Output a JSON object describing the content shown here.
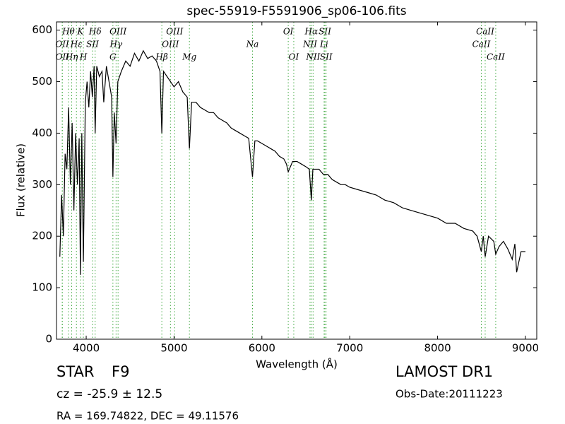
{
  "chart_data": {
    "type": "line",
    "title": "spec-55919-F5591906_sp06-106.fits",
    "xlabel": "Wavelength (Å)",
    "ylabel": "Flux (relative)",
    "xlim": [
      3662,
      9129
    ],
    "ylim": [
      0,
      616
    ],
    "xticks": [
      4000,
      5000,
      6000,
      7000,
      8000,
      9000
    ],
    "yticks": [
      0,
      100,
      200,
      300,
      400,
      500,
      600
    ],
    "x": [
      3700,
      3720,
      3740,
      3760,
      3780,
      3800,
      3820,
      3840,
      3860,
      3880,
      3900,
      3920,
      3934,
      3950,
      3968,
      3990,
      4010,
      4030,
      4050,
      4070,
      4090,
      4102,
      4120,
      4150,
      4180,
      4200,
      4230,
      4260,
      4290,
      4304,
      4320,
      4340,
      4360,
      4400,
      4450,
      4500,
      4550,
      4600,
      4650,
      4700,
      4750,
      4800,
      4840,
      4861,
      4880,
      4920,
      4960,
      5000,
      5050,
      5100,
      5150,
      5175,
      5200,
      5250,
      5300,
      5350,
      5400,
      5450,
      5500,
      5550,
      5600,
      5650,
      5700,
      5750,
      5800,
      5850,
      5893,
      5920,
      5950,
      6000,
      6050,
      6100,
      6150,
      6200,
      6250,
      6280,
      6300,
      6350,
      6400,
      6450,
      6500,
      6540,
      6563,
      6580,
      6650,
      6700,
      6750,
      6800,
      6850,
      6900,
      6950,
      7000,
      7100,
      7200,
      7300,
      7400,
      7500,
      7600,
      7700,
      7800,
      7900,
      8000,
      8100,
      8200,
      8300,
      8400,
      8450,
      8498,
      8520,
      8542,
      8580,
      8640,
      8662,
      8700,
      8750,
      8800,
      8850,
      8880,
      8900,
      8950,
      9000
    ],
    "series": [
      {
        "name": "flux",
        "color": "#000000",
        "values": [
          160,
          280,
          200,
          360,
          330,
          450,
          300,
          420,
          250,
          400,
          300,
          390,
          125,
          400,
          150,
          460,
          500,
          450,
          520,
          470,
          530,
          400,
          530,
          510,
          520,
          460,
          530,
          500,
          470,
          315,
          440,
          380,
          500,
          520,
          540,
          530,
          555,
          540,
          560,
          545,
          550,
          540,
          520,
          400,
          520,
          510,
          500,
          490,
          500,
          480,
          470,
          370,
          460,
          460,
          450,
          445,
          440,
          440,
          430,
          425,
          420,
          410,
          405,
          400,
          395,
          390,
          315,
          385,
          385,
          380,
          375,
          370,
          365,
          355,
          350,
          340,
          325,
          345,
          345,
          340,
          335,
          330,
          270,
          330,
          330,
          320,
          320,
          310,
          305,
          300,
          300,
          295,
          290,
          285,
          280,
          270,
          265,
          255,
          250,
          245,
          240,
          235,
          225,
          225,
          215,
          210,
          200,
          170,
          200,
          160,
          200,
          190,
          165,
          180,
          190,
          175,
          155,
          185,
          130,
          170,
          170
        ]
      }
    ],
    "line_markers": [
      {
        "label": "OII",
        "x": 3727
      },
      {
        "label": "OII",
        "x": 3729
      },
      {
        "label": "Hθ",
        "x": 3798
      },
      {
        "label": "Hη",
        "x": 3835
      },
      {
        "label": "Hε",
        "x": 3889
      },
      {
        "label": "K",
        "x": 3934
      },
      {
        "label": "H",
        "x": 3968
      },
      {
        "label": "SII",
        "x": 4072
      },
      {
        "label": "Hδ",
        "x": 4102
      },
      {
        "label": "G",
        "x": 4304
      },
      {
        "label": "Hγ",
        "x": 4340
      },
      {
        "label": "OIII",
        "x": 4363
      },
      {
        "label": "Hβ",
        "x": 4861
      },
      {
        "label": "OIII",
        "x": 4959
      },
      {
        "label": "OIII",
        "x": 5007
      },
      {
        "label": "Mg",
        "x": 5175
      },
      {
        "label": "Na",
        "x": 5893
      },
      {
        "label": "OI",
        "x": 6300
      },
      {
        "label": "OI",
        "x": 6363
      },
      {
        "label": "NII",
        "x": 6548
      },
      {
        "label": "Hα",
        "x": 6563
      },
      {
        "label": "NII",
        "x": 6583
      },
      {
        "label": "Li",
        "x": 6708
      },
      {
        "label": "SII",
        "x": 6717
      },
      {
        "label": "SII",
        "x": 6731
      },
      {
        "label": "CaII",
        "x": 8498
      },
      {
        "label": "CaII",
        "x": 8542
      },
      {
        "label": "CaII",
        "x": 8662
      }
    ],
    "marker_color": "#44aa44",
    "info": {
      "object_class": "STAR",
      "subclass": "F9",
      "velocity": "cz = -25.9 ± 12.5",
      "coordinates": "RA = 169.74822, DEC = 49.11576",
      "survey": "LAMOST DR1",
      "obs_date": "Obs-Date:20111223"
    }
  }
}
